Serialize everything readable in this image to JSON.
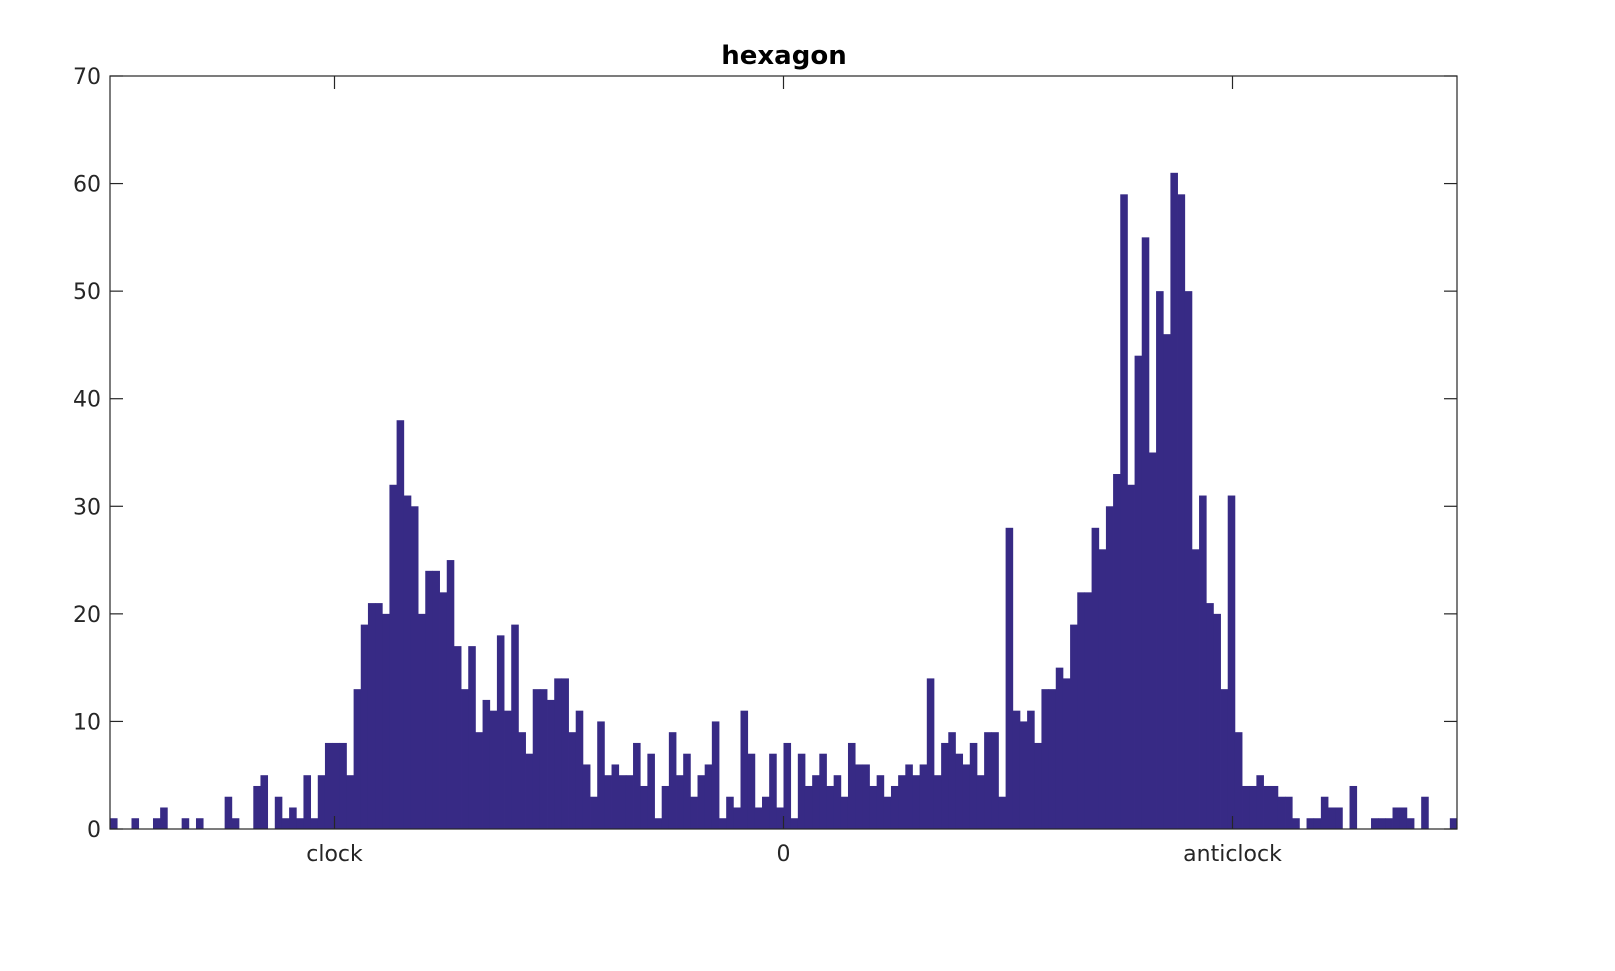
{
  "chart_data": {
    "type": "bar",
    "title": "hexagon",
    "xlabel": "",
    "ylabel": "",
    "ylim": [
      0,
      70
    ],
    "yticks": [
      0,
      10,
      20,
      30,
      40,
      50,
      60,
      70
    ],
    "xtick_labels": [
      "clock",
      "0",
      "anticlock"
    ],
    "bar_color": "#372a85",
    "grid": false,
    "legend": "none",
    "bins": 188,
    "values": [
      1,
      0,
      0,
      1,
      0,
      0,
      1,
      2,
      0,
      0,
      1,
      0,
      1,
      0,
      0,
      0,
      3,
      1,
      0,
      0,
      4,
      5,
      0,
      3,
      1,
      2,
      1,
      5,
      1,
      5,
      8,
      8,
      8,
      5,
      13,
      19,
      21,
      21,
      20,
      32,
      38,
      31,
      30,
      20,
      24,
      24,
      22,
      25,
      17,
      13,
      17,
      9,
      12,
      11,
      18,
      11,
      19,
      9,
      7,
      13,
      13,
      12,
      14,
      14,
      9,
      11,
      6,
      3,
      10,
      5,
      6,
      5,
      5,
      8,
      4,
      7,
      1,
      4,
      9,
      5,
      7,
      3,
      5,
      6,
      10,
      1,
      3,
      2,
      11,
      7,
      2,
      3,
      7,
      2,
      8,
      1,
      7,
      4,
      5,
      7,
      4,
      5,
      3,
      8,
      6,
      6,
      4,
      5,
      3,
      4,
      5,
      6,
      5,
      6,
      14,
      5,
      8,
      9,
      7,
      6,
      8,
      5,
      9,
      9,
      3,
      28,
      11,
      10,
      11,
      8,
      13,
      13,
      15,
      14,
      19,
      22,
      22,
      28,
      26,
      30,
      33,
      59,
      32,
      44,
      55,
      35,
      50,
      46,
      61,
      59,
      50,
      26,
      31,
      21,
      20,
      13,
      31,
      9,
      4,
      4,
      5,
      4,
      4,
      3,
      3,
      1,
      0,
      1,
      1,
      3,
      2,
      2,
      0,
      4,
      0,
      0,
      1,
      1,
      1,
      2,
      2,
      1,
      0,
      3,
      0,
      0,
      0,
      1
    ]
  }
}
